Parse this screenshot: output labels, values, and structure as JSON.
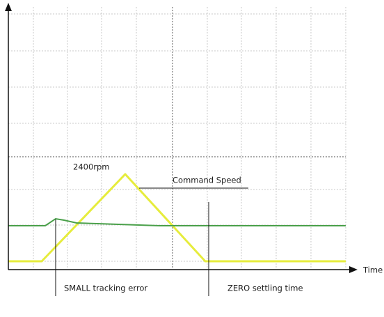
{
  "annotations": {
    "peak": "2400rpm",
    "command": "Command Speed",
    "tracking": "SMALL tracking error",
    "settling": "ZERO settling time"
  },
  "x_axis_label": "Time"
}
